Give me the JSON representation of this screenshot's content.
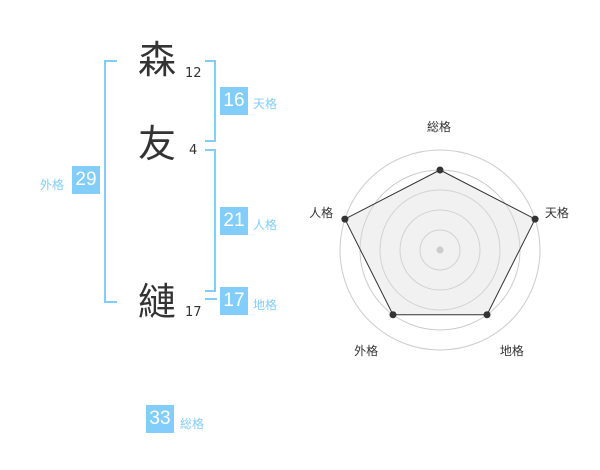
{
  "name": {
    "chars": [
      {
        "char": "森",
        "strokes": "12"
      },
      {
        "char": "友",
        "strokes": "4"
      },
      {
        "char": "縺",
        "strokes": "17"
      }
    ]
  },
  "kakusu": {
    "tenkaku": {
      "value": "16",
      "label": "天格"
    },
    "jinkaku": {
      "value": "21",
      "label": "人格"
    },
    "chikaku": {
      "value": "17",
      "label": "地格"
    },
    "gaikaku": {
      "value": "29",
      "label": "外格"
    },
    "soukaku": {
      "value": "33",
      "label": "総格"
    }
  },
  "accent_color": "#82cdf9",
  "chart_data": {
    "type": "radar",
    "categories": [
      "総格",
      "天格",
      "地格",
      "外格",
      "人格"
    ],
    "values": [
      4,
      5,
      4,
      4,
      5
    ],
    "range": [
      0,
      5
    ],
    "rings": 5
  }
}
